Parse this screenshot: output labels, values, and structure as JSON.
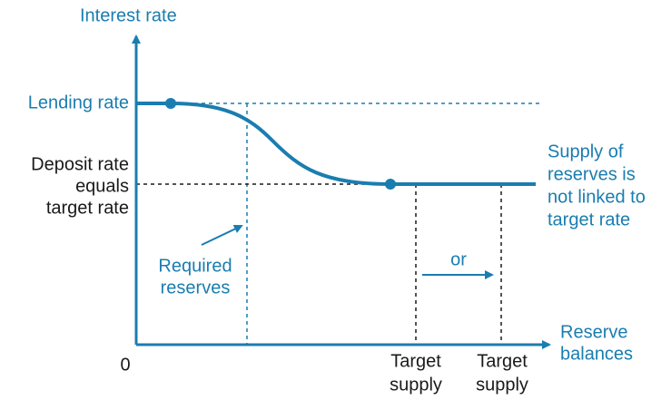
{
  "axes": {
    "y_label": "Interest rate",
    "x_label": [
      "Reserve",
      "balances"
    ],
    "origin": "0"
  },
  "levels": {
    "lending": "Lending rate",
    "deposit": [
      "Deposit rate",
      "equals",
      "target rate"
    ]
  },
  "annotations": {
    "required": [
      "Required",
      "reserves"
    ],
    "or": "or",
    "supply_note": [
      "Supply of",
      "reserves is",
      "not linked to",
      "target rate"
    ]
  },
  "targets": [
    [
      "Target",
      "supply"
    ],
    [
      "Target",
      "supply"
    ]
  ]
}
